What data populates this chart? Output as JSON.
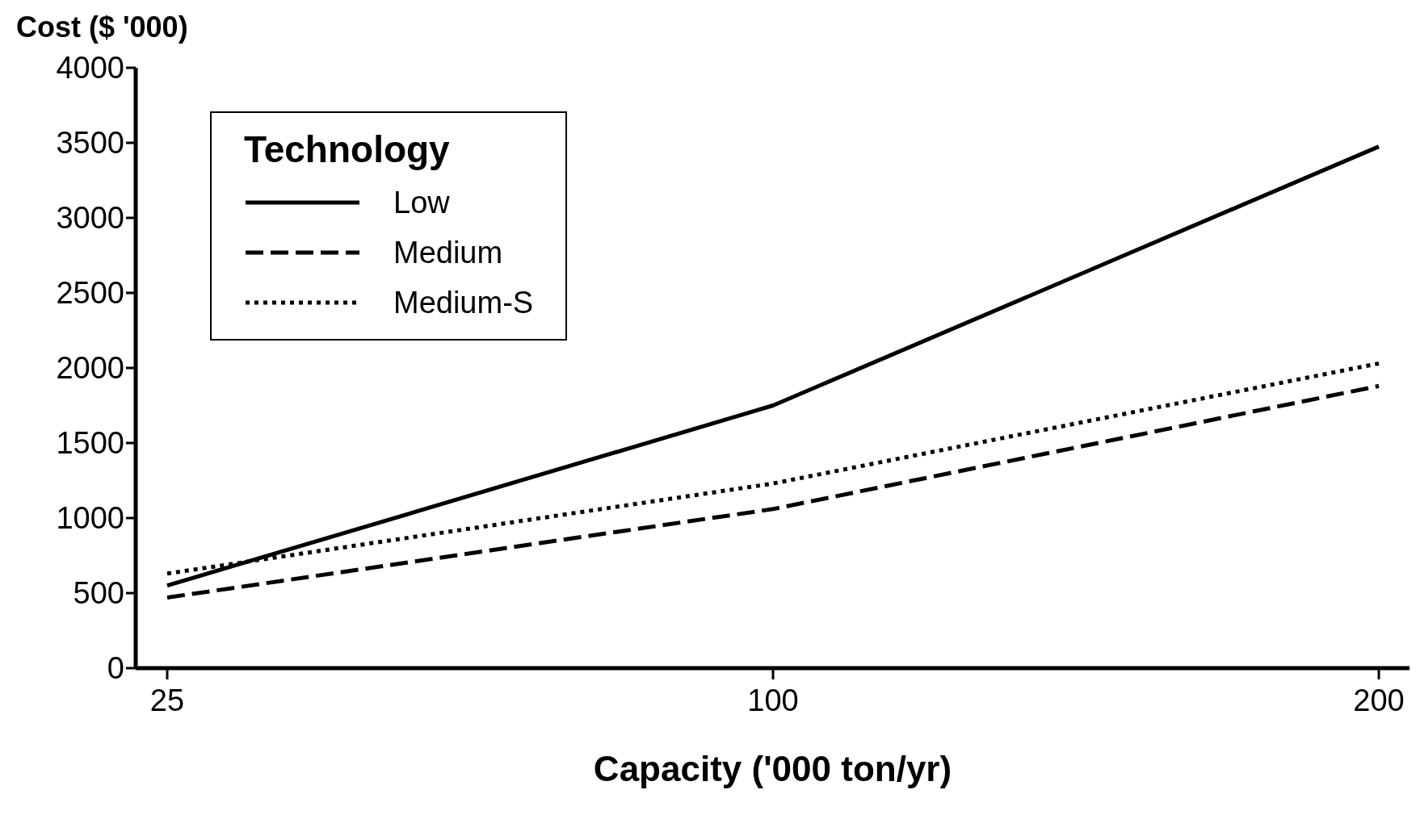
{
  "chart_data": {
    "type": "line",
    "xlabel": "Capacity ('000 ton/yr)",
    "ylabel": "Cost ($ '000)",
    "legend_title": "Technology",
    "categories": [
      "25",
      "100",
      "200"
    ],
    "series": [
      {
        "name": "Low",
        "color": "#000000",
        "line_style": "solid",
        "values": [
          550,
          1750,
          3475
        ]
      },
      {
        "name": "Medium",
        "color": "#000000",
        "line_style": "dashed",
        "values": [
          470,
          1060,
          1880
        ]
      },
      {
        "name": "Medium-S",
        "color": "#000000",
        "line_style": "dotted",
        "values": [
          630,
          1230,
          2030
        ]
      }
    ],
    "ylim": [
      0,
      4000
    ],
    "yticks": [
      0,
      500,
      1000,
      1500,
      2000,
      2500,
      3000,
      3500,
      4000
    ],
    "grid": false,
    "legend": "top left",
    "marker": "none"
  }
}
